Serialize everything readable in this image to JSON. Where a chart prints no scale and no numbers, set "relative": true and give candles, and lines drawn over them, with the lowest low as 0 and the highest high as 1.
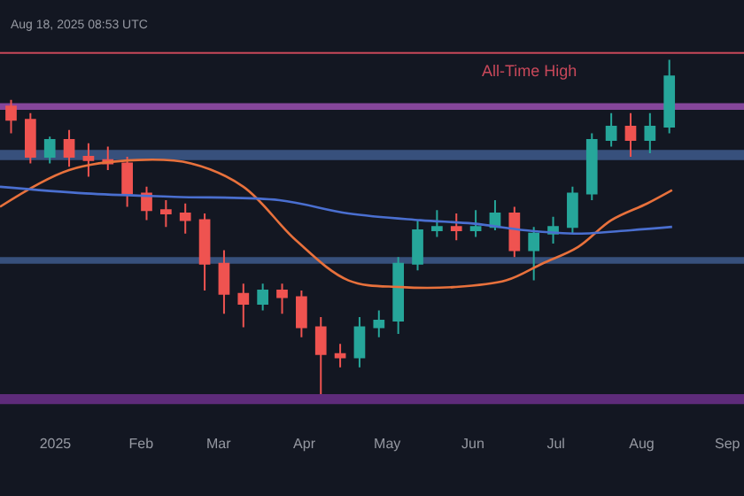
{
  "chart_data": {
    "type": "candlestick",
    "relative": true,
    "x": [
      "2024-12-16",
      "2024-12-23",
      "2024-12-30",
      "2025-01-06",
      "2025-01-13",
      "2025-01-20",
      "2025-01-27",
      "2025-02-03",
      "2025-02-10",
      "2025-02-17",
      "2025-02-24",
      "2025-03-03",
      "2025-03-10",
      "2025-03-17",
      "2025-03-24",
      "2025-03-31",
      "2025-04-07",
      "2025-04-14",
      "2025-04-21",
      "2025-04-28",
      "2025-05-05",
      "2025-05-12",
      "2025-05-19",
      "2025-05-26",
      "2025-06-02",
      "2025-06-09",
      "2025-06-16",
      "2025-06-23",
      "2025-06-30",
      "2025-07-07",
      "2025-07-14",
      "2025-07-21",
      "2025-07-28",
      "2025-08-04",
      "2025-08-11"
    ],
    "ohlc": [
      [
        0.86,
        0.88,
        0.78,
        0.82
      ],
      [
        0.82,
        0.84,
        0.69,
        0.71
      ],
      [
        0.71,
        0.77,
        0.69,
        0.76
      ],
      [
        0.76,
        0.79,
        0.68,
        0.71
      ],
      [
        0.71,
        0.75,
        0.65,
        0.7
      ],
      [
        0.7,
        0.74,
        0.67,
        0.69
      ],
      [
        0.69,
        0.71,
        0.56,
        0.6
      ],
      [
        0.6,
        0.62,
        0.52,
        0.55
      ],
      [
        0.55,
        0.58,
        0.5,
        0.54
      ],
      [
        0.54,
        0.57,
        0.48,
        0.52
      ],
      [
        0.52,
        0.54,
        0.31,
        0.39
      ],
      [
        0.39,
        0.43,
        0.24,
        0.3
      ],
      [
        0.3,
        0.33,
        0.2,
        0.27
      ],
      [
        0.27,
        0.33,
        0.25,
        0.31
      ],
      [
        0.31,
        0.33,
        0.24,
        0.29
      ],
      [
        0.29,
        0.31,
        0.17,
        0.2
      ],
      [
        0.2,
        0.23,
        0,
        0.12
      ],
      [
        0.12,
        0.15,
        0.08,
        0.11
      ],
      [
        0.11,
        0.23,
        0.08,
        0.2
      ],
      [
        0.2,
        0.25,
        0.17,
        0.22
      ],
      [
        0.22,
        0.41,
        0.18,
        0.39
      ],
      [
        0.39,
        0.52,
        0.37,
        0.49
      ],
      [
        0.49,
        0.55,
        0.47,
        0.5
      ],
      [
        0.5,
        0.54,
        0.46,
        0.49
      ],
      [
        0.49,
        0.55,
        0.47,
        0.5
      ],
      [
        0.5,
        0.58,
        0.49,
        0.54
      ],
      [
        0.54,
        0.56,
        0.41,
        0.43
      ],
      [
        0.43,
        0.5,
        0.34,
        0.48
      ],
      [
        0.48,
        0.53,
        0.45,
        0.5
      ],
      [
        0.5,
        0.62,
        0.48,
        0.6
      ],
      [
        0.6,
        0.78,
        0.58,
        0.76
      ],
      [
        0.76,
        0.84,
        0.74,
        0.8
      ],
      [
        0.8,
        0.84,
        0.71,
        0.76
      ],
      [
        0.76,
        0.84,
        0.72,
        0.8
      ],
      [
        0.8,
        1.0,
        0.78,
        0.95
      ]
    ],
    "colors": [
      "#ef5350",
      "#ef5350",
      "#26a69a",
      "#ef5350",
      "#ef5350",
      "#ef5350",
      "#ef5350",
      "#ef5350",
      "#ef5350",
      "#ef5350",
      "#ef5350",
      "#ef5350",
      "#ef5350",
      "#26a69a",
      "#ef5350",
      "#ef5350",
      "#ef5350",
      "#ef5350",
      "#26a69a",
      "#26a69a",
      "#26a69a",
      "#26a69a",
      "#26a69a",
      "#ef5350",
      "#26a69a",
      "#26a69a",
      "#ef5350",
      "#26a69a",
      "#26a69a",
      "#26a69a",
      "#26a69a",
      "#26a69a",
      "#ef5350",
      "#26a69a",
      "#26a69a"
    ],
    "series": [
      {
        "type": "line",
        "color": "#e8713c",
        "x": [
          "2024-12-12",
          "2025-01-06",
          "2025-01-31",
          "2025-02-19",
          "2025-03-10",
          "2025-03-29",
          "2025-04-17",
          "2025-05-06",
          "2025-05-25",
          "2025-06-13",
          "2025-06-26",
          "2025-07-09",
          "2025-07-21",
          "2025-08-03",
          "2025-08-12"
        ],
        "values": [
          0.56,
          0.67,
          0.7,
          0.69,
          0.62,
          0.46,
          0.34,
          0.32,
          0.32,
          0.34,
          0.39,
          0.44,
          0.52,
          0.57,
          0.61
        ]
      },
      {
        "type": "line",
        "color": "#4a6fd0",
        "x": [
          "2024-12-12",
          "2025-01-12",
          "2025-02-13",
          "2025-03-23",
          "2025-04-17",
          "2025-05-13",
          "2025-06-01",
          "2025-06-20",
          "2025-07-09",
          "2025-07-28",
          "2025-08-12"
        ],
        "values": [
          0.62,
          0.6,
          0.59,
          0.58,
          0.54,
          0.52,
          0.51,
          0.49,
          0.48,
          0.49,
          0.5
        ]
      }
    ],
    "xlim": [
      "2024-12-12",
      "2025-09-07"
    ],
    "xticks": [
      {
        "value": "2025-01-01",
        "label": "2025"
      },
      {
        "value": "2025-02-01",
        "label": "Feb"
      },
      {
        "value": "2025-03-01",
        "label": "Mar"
      },
      {
        "value": "2025-04-01",
        "label": "Apr"
      },
      {
        "value": "2025-05-01",
        "label": "May"
      },
      {
        "value": "2025-06-01",
        "label": "Jun"
      },
      {
        "value": "2025-07-01",
        "label": "Jul"
      },
      {
        "value": "2025-08-01",
        "label": "Aug"
      },
      {
        "value": "2025-09-01",
        "label": "Sep"
      }
    ],
    "ref_lines": [
      {
        "axis": "y",
        "value": 1.02,
        "label": "All-Time High",
        "color": "#c8485a"
      }
    ],
    "bands": [
      {
        "axis": "y",
        "from": 0.85,
        "to": 0.87,
        "color": "#9a4fb0"
      },
      {
        "axis": "y",
        "from": 0.7,
        "to": 0.73,
        "color": "#3e5a8c"
      },
      {
        "axis": "y",
        "from": 0.39,
        "to": 0.41,
        "color": "#3e5a8c"
      },
      {
        "axis": "y",
        "from": -0.03,
        "to": 0,
        "color": "#6c2f8a"
      }
    ],
    "annotations": [
      "Aug 18, 2025 08:53 UTC"
    ]
  }
}
